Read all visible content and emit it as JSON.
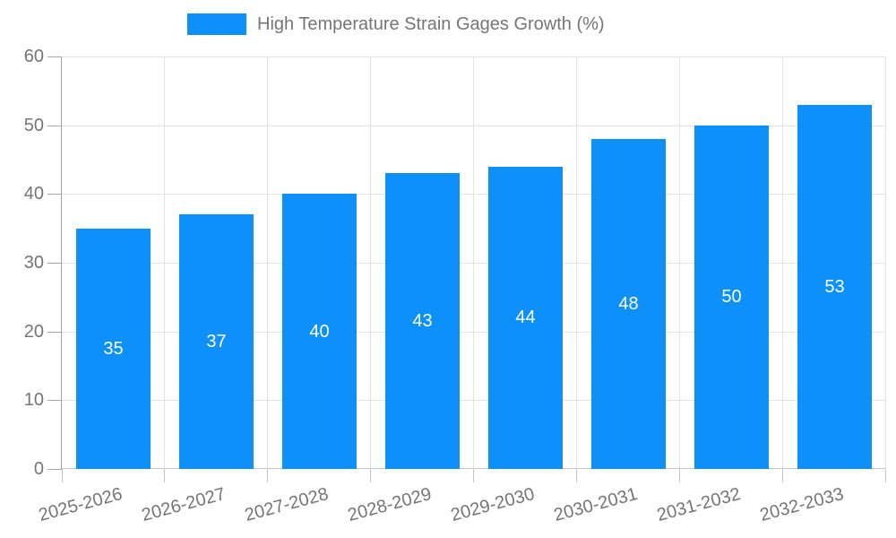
{
  "legend": {
    "label": "High Temperature Strain Gages Growth (%)"
  },
  "chart_data": {
    "type": "bar",
    "title": "High Temperature Strain Gages Growth (%)",
    "categories": [
      "2025-2026",
      "2026-2027",
      "2027-2028",
      "2028-2029",
      "2029-2030",
      "2030-2031",
      "2031-2032",
      "2032-2033"
    ],
    "values": [
      35,
      37,
      40,
      43,
      44,
      48,
      50,
      53
    ],
    "xlabel": "",
    "ylabel": "",
    "ylim": [
      0,
      60
    ],
    "ytick_step": 10,
    "grid": true,
    "legend_position": "top-center",
    "bar_color": "#0d90f9",
    "value_label_color": "#ffffff",
    "axis_text_color": "#757575",
    "gridline_color": "#e3e3e3",
    "axis_line_color": "#9e9e9e",
    "bar_width_ratio": 0.72
  }
}
